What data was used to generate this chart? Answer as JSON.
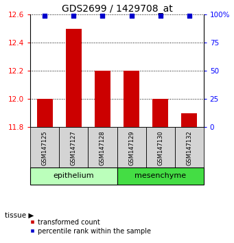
{
  "title": "GDS2699 / 1429708_at",
  "samples": [
    "GSM147125",
    "GSM147127",
    "GSM147128",
    "GSM147129",
    "GSM147130",
    "GSM147132"
  ],
  "bar_values": [
    12.0,
    12.5,
    12.2,
    12.2,
    12.0,
    11.9
  ],
  "percentile_values": [
    99,
    99,
    99,
    99,
    99,
    99
  ],
  "bar_bottom": 11.8,
  "ylim_left": [
    11.8,
    12.6
  ],
  "ylim_right": [
    0,
    100
  ],
  "yticks_left": [
    11.8,
    12.0,
    12.2,
    12.4,
    12.6
  ],
  "yticks_right": [
    0,
    25,
    50,
    75,
    100
  ],
  "ytick_labels_right": [
    "0",
    "25",
    "50",
    "75",
    "100%"
  ],
  "bar_color": "#cc0000",
  "dot_color": "#0000cc",
  "dot_percentile": 99,
  "groups": [
    {
      "label": "epithelium",
      "indices": [
        0,
        1,
        2
      ],
      "color": "#bbffbb"
    },
    {
      "label": "mesenchyme",
      "indices": [
        3,
        4,
        5
      ],
      "color": "#44dd44"
    }
  ],
  "tissue_label": "tissue",
  "legend_bar_label": "transformed count",
  "legend_dot_label": "percentile rank within the sample",
  "background_color": "#ffffff",
  "title_fontsize": 10,
  "tick_fontsize": 7.5,
  "sample_fontsize": 6,
  "group_fontsize": 8,
  "legend_fontsize": 7
}
